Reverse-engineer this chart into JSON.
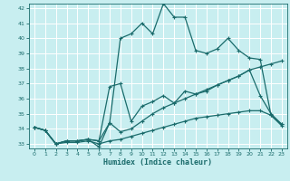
{
  "xlabel": "Humidex (Indice chaleur)",
  "xlim": [
    -0.5,
    23.5
  ],
  "ylim": [
    32.7,
    42.3
  ],
  "yticks": [
    33,
    34,
    35,
    36,
    37,
    38,
    39,
    40,
    41,
    42
  ],
  "xticks": [
    0,
    1,
    2,
    3,
    4,
    5,
    6,
    7,
    8,
    9,
    10,
    11,
    12,
    13,
    14,
    15,
    16,
    17,
    18,
    19,
    20,
    21,
    22,
    23
  ],
  "bg_color": "#c8eef0",
  "line_color": "#1a6b6b",
  "grid_color": "#ffffff",
  "series1_x": [
    0,
    1,
    2,
    3,
    4,
    5,
    6,
    7,
    8,
    9,
    10,
    11,
    12,
    13,
    14,
    15,
    16,
    17,
    18,
    19,
    20,
    21,
    22,
    23
  ],
  "series1_y": [
    34.1,
    33.9,
    33.0,
    33.2,
    33.2,
    33.3,
    32.8,
    34.4,
    40.0,
    40.3,
    41.0,
    40.3,
    42.3,
    41.4,
    41.4,
    39.2,
    39.0,
    39.3,
    40.0,
    39.2,
    38.7,
    38.6,
    34.9,
    34.3
  ],
  "series2_x": [
    0,
    1,
    2,
    3,
    4,
    5,
    6,
    7,
    8,
    9,
    10,
    11,
    12,
    13,
    14,
    15,
    16,
    17,
    18,
    19,
    20,
    21,
    22,
    23
  ],
  "series2_y": [
    34.1,
    33.9,
    33.0,
    33.2,
    33.2,
    33.3,
    33.2,
    36.8,
    37.0,
    34.5,
    35.5,
    35.8,
    36.2,
    35.7,
    36.5,
    36.3,
    36.5,
    36.9,
    37.2,
    37.5,
    37.9,
    36.2,
    35.0,
    34.3
  ],
  "series3_x": [
    0,
    1,
    2,
    3,
    4,
    5,
    6,
    7,
    8,
    9,
    10,
    11,
    12,
    13,
    14,
    15,
    16,
    17,
    18,
    19,
    20,
    21,
    22,
    23
  ],
  "series3_y": [
    34.1,
    33.9,
    33.0,
    33.2,
    33.2,
    33.3,
    33.2,
    34.4,
    33.8,
    34.0,
    34.5,
    35.0,
    35.4,
    35.7,
    36.0,
    36.3,
    36.6,
    36.9,
    37.2,
    37.5,
    37.9,
    38.1,
    38.3,
    38.5
  ],
  "series4_x": [
    0,
    1,
    2,
    3,
    4,
    5,
    6,
    7,
    8,
    9,
    10,
    11,
    12,
    13,
    14,
    15,
    16,
    17,
    18,
    19,
    20,
    21,
    22,
    23
  ],
  "series4_y": [
    34.1,
    33.9,
    33.0,
    33.1,
    33.1,
    33.2,
    33.0,
    33.2,
    33.3,
    33.5,
    33.7,
    33.9,
    34.1,
    34.3,
    34.5,
    34.7,
    34.8,
    34.9,
    35.0,
    35.1,
    35.2,
    35.2,
    34.9,
    34.2
  ]
}
